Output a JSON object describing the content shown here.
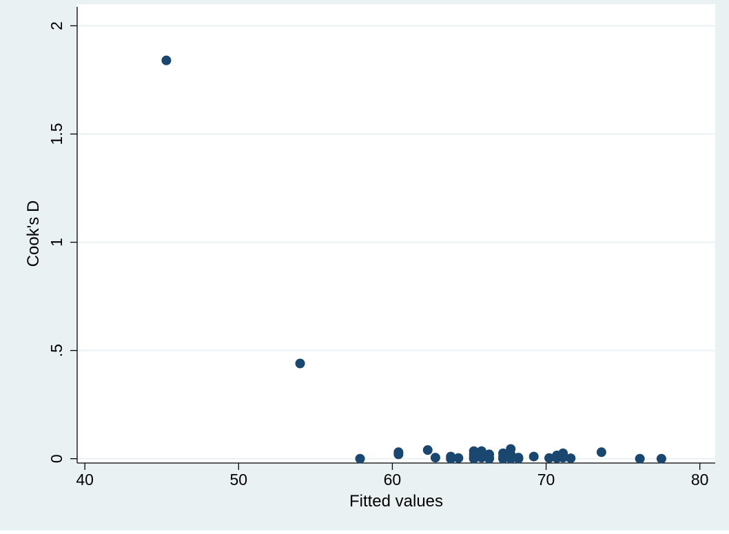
{
  "chart_data": {
    "type": "scatter",
    "title": "",
    "xlabel": "Fitted values",
    "ylabel": "Cook's D",
    "xlim": [
      39.5,
      81
    ],
    "ylim": [
      -0.02,
      2.1
    ],
    "x_ticks": [
      40,
      50,
      60,
      70,
      80
    ],
    "x_tick_labels": [
      "40",
      "50",
      "60",
      "70",
      "80"
    ],
    "y_ticks": [
      0,
      0.5,
      1,
      1.5,
      2
    ],
    "y_tick_labels": [
      "0",
      ".5",
      "1",
      "1.5",
      "2"
    ],
    "grid": "horizontal",
    "legend": "none",
    "colors": {
      "outer_background": "#eaf1f3",
      "plot_background": "#ffffff",
      "grid": "#eaf1f3",
      "marker": "#1a476f"
    },
    "points": [
      [
        45.3,
        1.84
      ],
      [
        54.0,
        0.44
      ],
      [
        57.9,
        0.0
      ],
      [
        60.4,
        0.03
      ],
      [
        60.4,
        0.02
      ],
      [
        62.3,
        0.04
      ],
      [
        62.8,
        0.005
      ],
      [
        63.8,
        0.01
      ],
      [
        63.8,
        0.0
      ],
      [
        64.3,
        0.003
      ],
      [
        65.3,
        0.035
      ],
      [
        65.3,
        0.02
      ],
      [
        65.3,
        0.01
      ],
      [
        65.3,
        0.0
      ],
      [
        65.8,
        0.035
      ],
      [
        65.8,
        0.015
      ],
      [
        65.8,
        0.005
      ],
      [
        66.3,
        0.02
      ],
      [
        66.3,
        0.005
      ],
      [
        66.3,
        0.0
      ],
      [
        67.2,
        0.025
      ],
      [
        67.2,
        0.01
      ],
      [
        67.2,
        0.0
      ],
      [
        67.7,
        0.045
      ],
      [
        67.7,
        0.02
      ],
      [
        67.7,
        0.0
      ],
      [
        68.2,
        0.005
      ],
      [
        68.2,
        0.0
      ],
      [
        69.2,
        0.01
      ],
      [
        70.2,
        0.003
      ],
      [
        70.7,
        0.015
      ],
      [
        70.7,
        0.003
      ],
      [
        71.1,
        0.025
      ],
      [
        71.1,
        0.005
      ],
      [
        71.6,
        0.002
      ],
      [
        73.6,
        0.03
      ],
      [
        76.1,
        0.0
      ],
      [
        77.5,
        0.0
      ]
    ]
  }
}
